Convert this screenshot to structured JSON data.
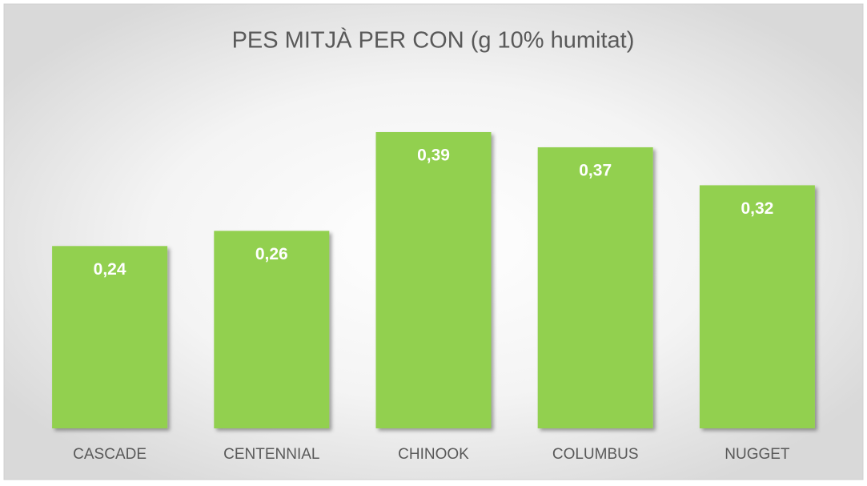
{
  "chart_data": {
    "type": "bar",
    "title": "PES MITJÀ PER CON (g 10% humitat)",
    "categories": [
      "CASCADE",
      "CENTENNIAL",
      "CHINOOK",
      "COLUMBUS",
      "NUGGET"
    ],
    "values": [
      0.24,
      0.26,
      0.39,
      0.37,
      0.32
    ],
    "value_labels": [
      "0,24",
      "0,26",
      "0,39",
      "0,37",
      "0,32"
    ],
    "color": "#92d050"
  }
}
